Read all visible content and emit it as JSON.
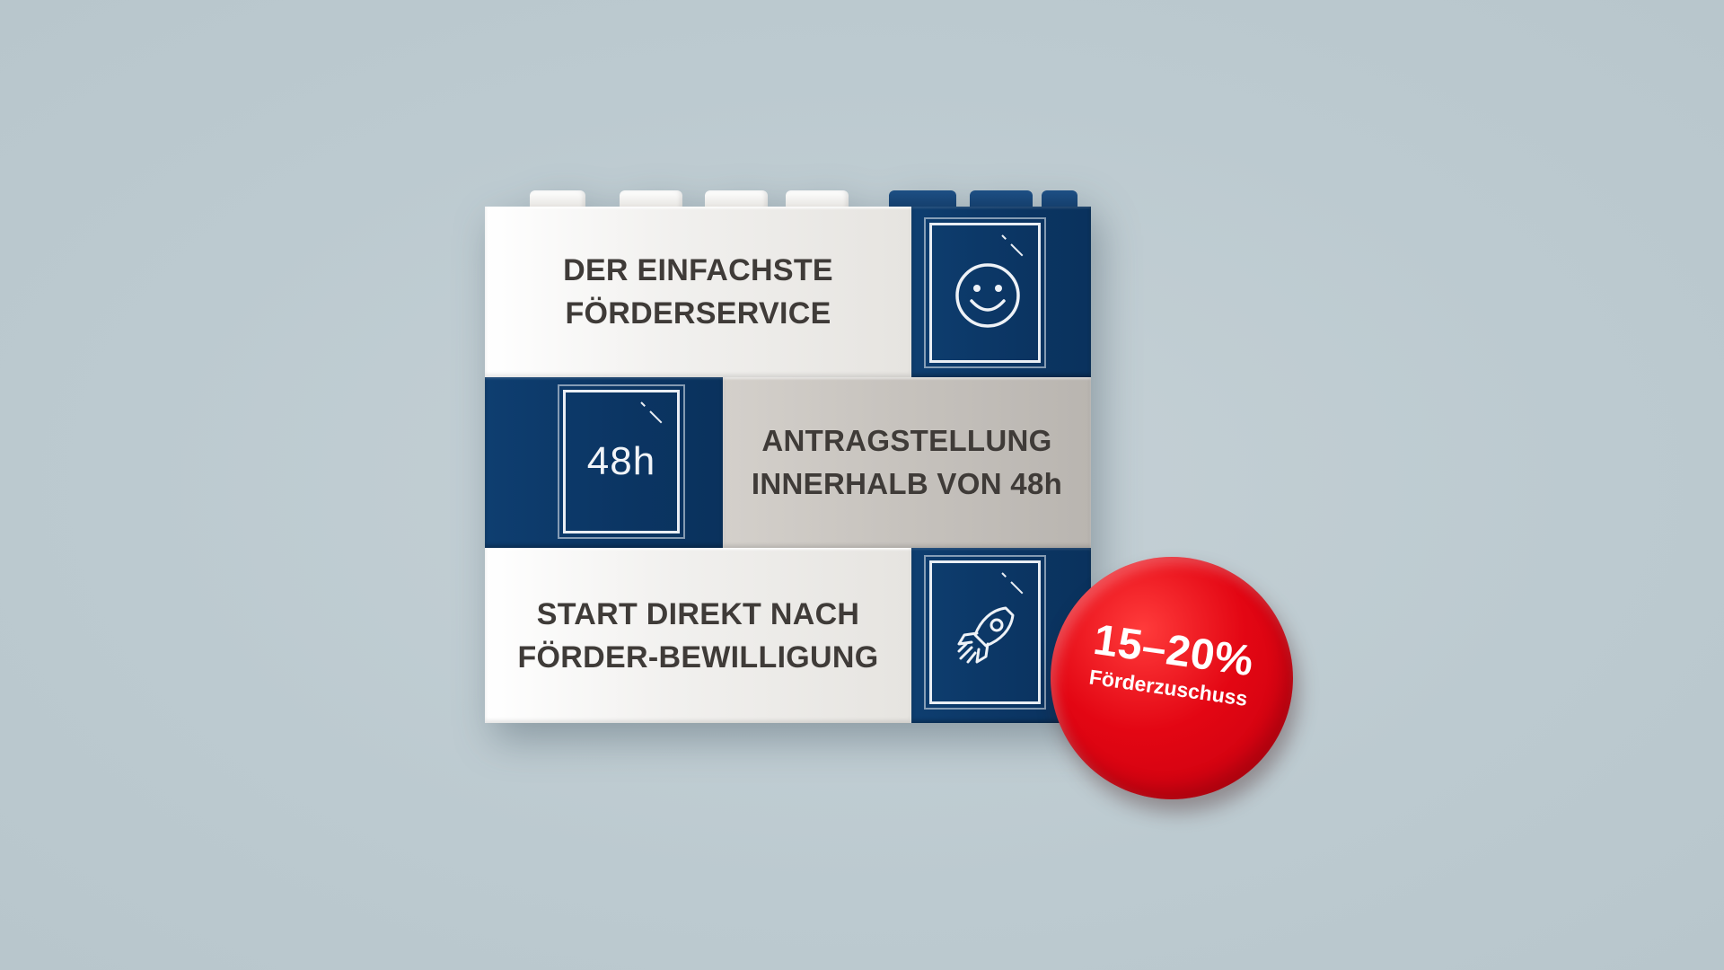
{
  "bricks": {
    "top_text_line1": "DER EINFACHSTE",
    "top_text_line2": "FÖRDERSERVICE",
    "middle_icon_label": "48h",
    "middle_text_line1": "ANTRAGSTELLUNG",
    "middle_text_line2": "INNERHALB VON 48h",
    "bottom_text_line1": "START DIREKT NACH",
    "bottom_text_line2": "FÖRDER-BEWILLIGUNG"
  },
  "badge": {
    "percent": "15–20%",
    "label": "Förderzuschuss"
  },
  "icons": [
    "smiley-icon",
    "rocket-icon"
  ],
  "colors": {
    "background": "#bfcbd1",
    "navy": "#0c3866",
    "white_brick": "#f1f0ee",
    "grey_brick": "#c6c2bd",
    "text_dark": "#3f3b38",
    "badge_red": "#e30613"
  }
}
